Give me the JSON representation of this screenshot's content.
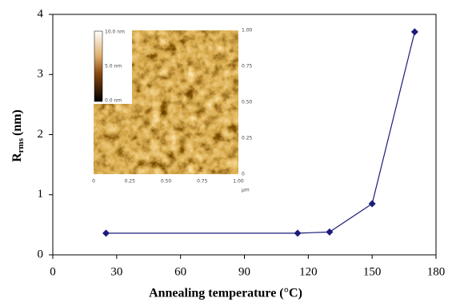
{
  "chart_data": {
    "type": "line",
    "xlabel": "Annealing temperature (°C)",
    "ylabel": {
      "main": "R",
      "sub": "rms",
      "unit": "(nm)"
    },
    "x": [
      25,
      115,
      130,
      150,
      170
    ],
    "series": [
      {
        "color": "#1c1c7a",
        "values": [
          0.36,
          0.36,
          0.38,
          0.85,
          3.71
        ]
      }
    ],
    "xlim": [
      0,
      180
    ],
    "xticks": [
      0,
      30,
      60,
      90,
      120,
      150,
      180
    ],
    "ylim": [
      0,
      4
    ],
    "yticks": [
      0,
      1,
      2,
      3,
      4
    ]
  },
  "inset": {
    "colorbar_labels": [
      "10.0 nm",
      "5.0 nm",
      "0.0 nm"
    ],
    "x_ticks": [
      "0",
      "0.25",
      "0.50",
      "0.75",
      "1.00"
    ],
    "y_ticks": [
      "0",
      "0.25",
      "0.50",
      "0.75",
      "1.00"
    ],
    "unit": "µm"
  }
}
